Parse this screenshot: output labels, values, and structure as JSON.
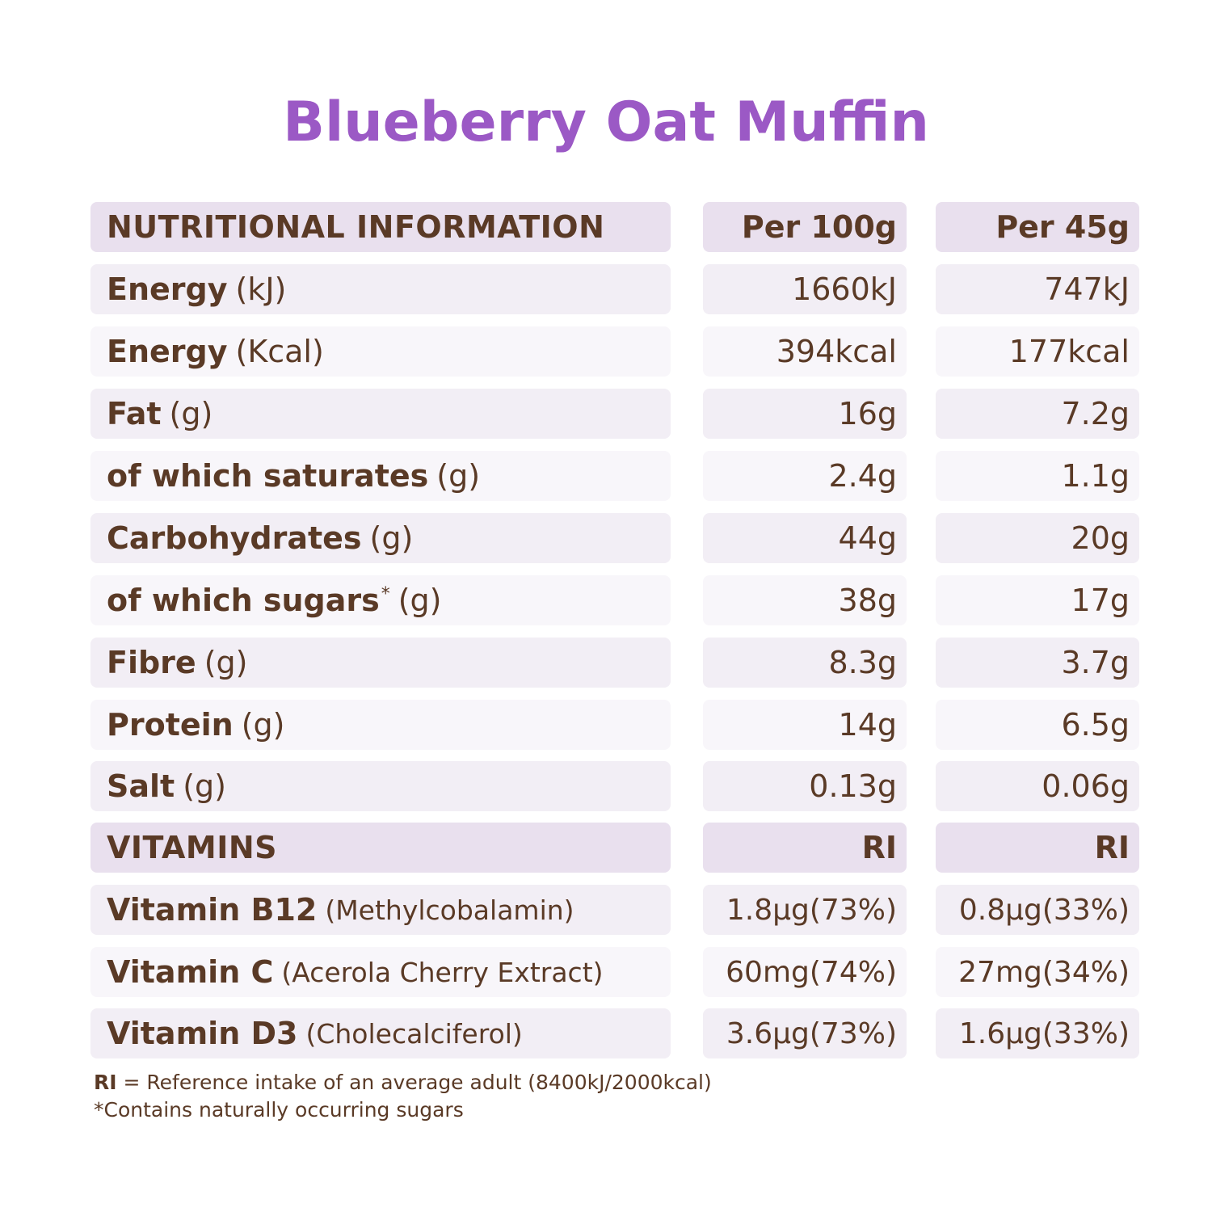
{
  "title": "Blueberry Oat Muffin",
  "colors": {
    "title": "#9b59c5",
    "text": "#5a3a26",
    "header_bg": "#e9e0ee",
    "row_bg_a": "#f2eef5",
    "row_bg_b": "#f8f6fa"
  },
  "table": {
    "header": {
      "label": "NUTRITIONAL INFORMATION",
      "col1": "Per 100g",
      "col2": "Per 45g"
    },
    "rows": [
      {
        "label": "Energy",
        "unit": "(kJ)",
        "per100": "1660kJ",
        "per45": "747kJ"
      },
      {
        "label": "Energy",
        "unit": "(Kcal)",
        "per100": "394kcal",
        "per45": "177kcal"
      },
      {
        "label": "Fat",
        "unit": "(g)",
        "per100": "16g",
        "per45": "7.2g"
      },
      {
        "label": "of which saturates",
        "unit": "(g)",
        "per100": "2.4g",
        "per45": "1.1g"
      },
      {
        "label": "Carbohydrates",
        "unit": "(g)",
        "per100": "44g",
        "per45": "20g"
      },
      {
        "label": "of which sugars",
        "asterisk": "*",
        "unit": "(g)",
        "per100": "38g",
        "per45": "17g"
      },
      {
        "label": "Fibre",
        "unit": "(g)",
        "per100": "8.3g",
        "per45": "3.7g"
      },
      {
        "label": "Protein",
        "unit": "(g)",
        "per100": "14g",
        "per45": "6.5g"
      },
      {
        "label": "Salt",
        "unit": "(g)",
        "per100": "0.13g",
        "per45": "0.06g"
      }
    ],
    "vitamins_header": {
      "label": "VITAMINS",
      "col1": "RI",
      "col2": "RI"
    },
    "vitamins": [
      {
        "label": "Vitamin B12",
        "source": "(Methylcobalamin)",
        "per100": "1.8µg(73%)",
        "per45": "0.8µg(33%)"
      },
      {
        "label": "Vitamin C",
        "source": "(Acerola Cherry Extract)",
        "per100": "60mg(74%)",
        "per45": "27mg(34%)"
      },
      {
        "label": "Vitamin D3",
        "source": "(Cholecalciferol)",
        "per100": "3.6µg(73%)",
        "per45": "1.6µg(33%)"
      }
    ]
  },
  "footnotes": {
    "ri_abbr": "RI",
    "ri_text": " = Reference intake of an average adult (8400kJ/2000kcal)",
    "sugars_note": "*Contains naturally occurring sugars"
  }
}
